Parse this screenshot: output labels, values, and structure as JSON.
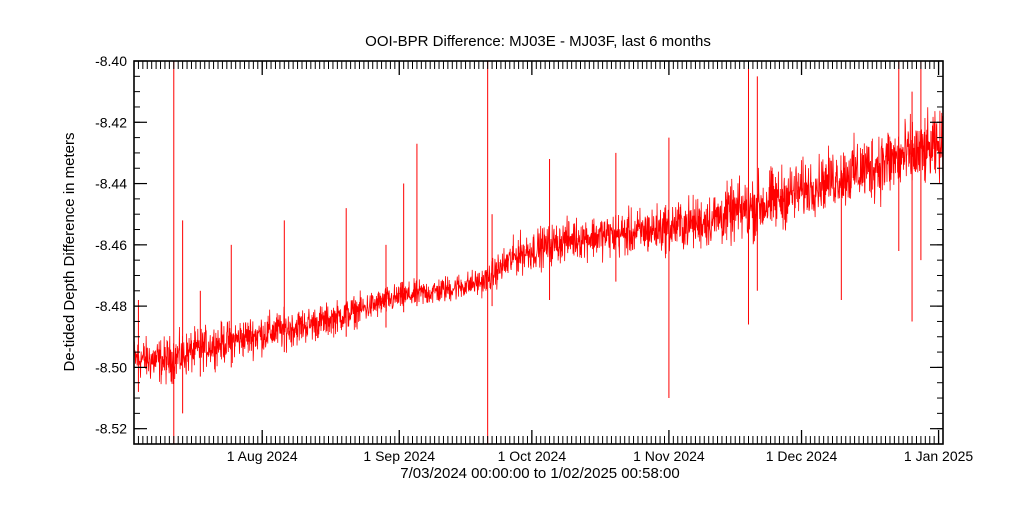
{
  "chart_data": {
    "type": "line",
    "title": "OOI-BPR Difference: MJ03E - MJ03F, last 6 months",
    "ylabel": "De-tided Depth Difference in meters",
    "xlabel": "7/03/2024 00:00:00 to  1/02/2025 00:58:00",
    "xlim": [
      "2024-07-03",
      "2025-01-02"
    ],
    "ylim": [
      -8.525,
      -8.4
    ],
    "x_ticks": [
      {
        "date": "2024-08-01",
        "label": "1 Aug 2024"
      },
      {
        "date": "2024-09-01",
        "label": "1 Sep 2024"
      },
      {
        "date": "2024-10-01",
        "label": "1 Oct 2024"
      },
      {
        "date": "2024-11-01",
        "label": "1 Nov 2024"
      },
      {
        "date": "2024-12-01",
        "label": "1 Dec 2024"
      },
      {
        "date": "2025-01-01",
        "label": "1 Jan 2025"
      }
    ],
    "y_ticks": [
      -8.52,
      -8.5,
      -8.48,
      -8.46,
      -8.44,
      -8.42,
      -8.4
    ],
    "y_tick_labels": [
      "-8.52",
      "-8.50",
      "-8.48",
      "-8.46",
      "-8.44",
      "-8.42",
      "-8.40"
    ],
    "grid": false,
    "line_color": "#ff0000",
    "series": [
      {
        "trend": [
          {
            "x": "2024-07-03",
            "y": -8.497,
            "spread": 0.006
          },
          {
            "x": "2024-07-10",
            "y": -8.498,
            "spread": 0.007
          },
          {
            "x": "2024-07-20",
            "y": -8.493,
            "spread": 0.006
          },
          {
            "x": "2024-08-01",
            "y": -8.489,
            "spread": 0.006
          },
          {
            "x": "2024-08-15",
            "y": -8.485,
            "spread": 0.005
          },
          {
            "x": "2024-09-01",
            "y": -8.477,
            "spread": 0.004
          },
          {
            "x": "2024-09-10",
            "y": -8.475,
            "spread": 0.004
          },
          {
            "x": "2024-09-20",
            "y": -8.472,
            "spread": 0.004
          },
          {
            "x": "2024-09-28",
            "y": -8.463,
            "spread": 0.006
          },
          {
            "x": "2024-10-10",
            "y": -8.458,
            "spread": 0.006
          },
          {
            "x": "2024-10-25",
            "y": -8.456,
            "spread": 0.007
          },
          {
            "x": "2024-11-10",
            "y": -8.452,
            "spread": 0.008
          },
          {
            "x": "2024-11-22",
            "y": -8.447,
            "spread": 0.01
          },
          {
            "x": "2024-12-05",
            "y": -8.44,
            "spread": 0.008
          },
          {
            "x": "2024-12-20",
            "y": -8.433,
            "spread": 0.011
          },
          {
            "x": "2025-01-02",
            "y": -8.428,
            "spread": 0.01
          }
        ],
        "spikes": [
          {
            "x": "2024-07-04",
            "y1": -8.508,
            "y2": -8.478
          },
          {
            "x": "2024-07-12",
            "y1": -8.525,
            "y2": -8.4
          },
          {
            "x": "2024-07-14",
            "y1": -8.515,
            "y2": -8.452
          },
          {
            "x": "2024-07-18",
            "y1": -8.503,
            "y2": -8.475
          },
          {
            "x": "2024-07-25",
            "y1": -8.5,
            "y2": -8.46
          },
          {
            "x": "2024-08-06",
            "y1": -8.495,
            "y2": -8.452
          },
          {
            "x": "2024-08-20",
            "y1": -8.49,
            "y2": -8.448
          },
          {
            "x": "2024-08-29",
            "y1": -8.487,
            "y2": -8.46
          },
          {
            "x": "2024-09-02",
            "y1": -8.482,
            "y2": -8.44
          },
          {
            "x": "2024-09-05",
            "y1": -8.48,
            "y2": -8.427
          },
          {
            "x": "2024-09-21",
            "y1": -8.525,
            "y2": -8.4
          },
          {
            "x": "2024-09-22",
            "y1": -8.48,
            "y2": -8.45
          },
          {
            "x": "2024-10-05",
            "y1": -8.478,
            "y2": -8.432
          },
          {
            "x": "2024-10-20",
            "y1": -8.472,
            "y2": -8.43
          },
          {
            "x": "2024-11-01",
            "y1": -8.51,
            "y2": -8.425
          },
          {
            "x": "2024-11-19",
            "y1": -8.486,
            "y2": -8.4
          },
          {
            "x": "2024-11-21",
            "y1": -8.475,
            "y2": -8.405
          },
          {
            "x": "2024-12-10",
            "y1": -8.478,
            "y2": -8.445
          },
          {
            "x": "2024-12-23",
            "y1": -8.462,
            "y2": -8.4
          },
          {
            "x": "2024-12-26",
            "y1": -8.485,
            "y2": -8.41
          },
          {
            "x": "2024-12-28",
            "y1": -8.465,
            "y2": -8.4
          }
        ]
      }
    ]
  }
}
